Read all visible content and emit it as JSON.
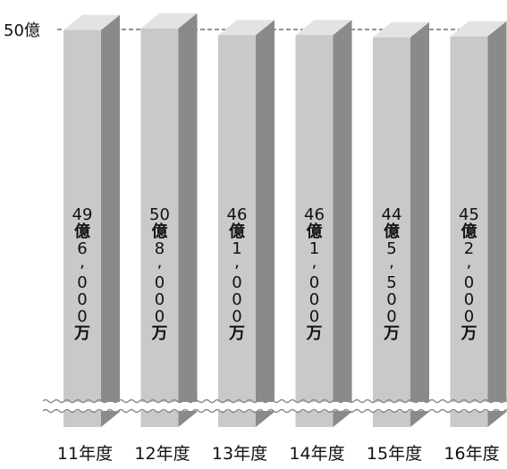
{
  "chart_data": {
    "type": "bar",
    "style": "3d-columns",
    "categories": [
      "11年度",
      "12年度",
      "13年度",
      "14年度",
      "15年度",
      "16年度"
    ],
    "values": [
      4960000000,
      5080000000,
      4610000000,
      4610000000,
      4455000000,
      4520000000
    ],
    "bar_labels": [
      [
        "49",
        "億",
        "6",
        ",",
        "0",
        "0",
        "0",
        "万"
      ],
      [
        "50",
        "億",
        "8",
        ",",
        "0",
        "0",
        "0",
        "万"
      ],
      [
        "46",
        "億",
        "1",
        ",",
        "0",
        "0",
        "0",
        "万"
      ],
      [
        "46",
        "億",
        "1",
        ",",
        "0",
        "0",
        "0",
        "万"
      ],
      [
        "44",
        "億",
        "5",
        ",",
        "5",
        "0",
        "0",
        "万"
      ],
      [
        "45",
        "億",
        "2",
        ",",
        "0",
        "0",
        "0",
        "万"
      ]
    ],
    "reference_line": {
      "value": 5000000000,
      "label": "50億",
      "style": "dashed"
    },
    "axis_break": true,
    "colors": {
      "bar_front": "#c9c9c9",
      "bar_top": "#e3e3e3",
      "bar_side": "#8a8a8a",
      "text": "#111111",
      "break_line": "#8c8c8c"
    },
    "legend": "none",
    "grid": false
  }
}
